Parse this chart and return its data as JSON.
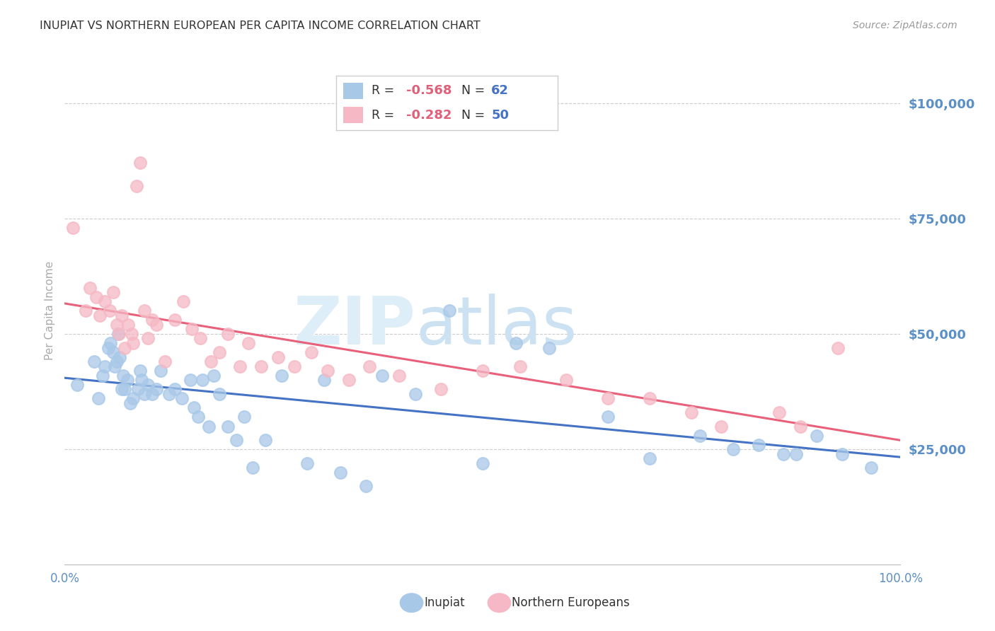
{
  "title": "INUPIAT VS NORTHERN EUROPEAN PER CAPITA INCOME CORRELATION CHART",
  "source": "Source: ZipAtlas.com",
  "ylabel": "Per Capita Income",
  "ytick_labels": [
    "$25,000",
    "$50,000",
    "$75,000",
    "$100,000"
  ],
  "ytick_values": [
    25000,
    50000,
    75000,
    100000
  ],
  "ymin": 0,
  "ymax": 110000,
  "xmin": 0.0,
  "xmax": 1.0,
  "blue_R": "-0.568",
  "blue_N": "62",
  "pink_R": "-0.282",
  "pink_N": "50",
  "blue_scatter_color": "#a8c8e8",
  "pink_scatter_color": "#f5b8c4",
  "blue_line_color": "#4472c4",
  "pink_line_color": "#e8607a",
  "title_color": "#333333",
  "source_color": "#999999",
  "axis_color": "#5b8fc7",
  "grid_color": "#cccccc",
  "background_color": "#ffffff",
  "legend_R_color": "#e0607a",
  "legend_N_color": "#4472c4",
  "inupiat_x": [
    0.015,
    0.035,
    0.04,
    0.045,
    0.048,
    0.052,
    0.055,
    0.058,
    0.06,
    0.062,
    0.064,
    0.066,
    0.068,
    0.07,
    0.072,
    0.075,
    0.078,
    0.082,
    0.088,
    0.09,
    0.092,
    0.095,
    0.1,
    0.105,
    0.11,
    0.115,
    0.125,
    0.132,
    0.14,
    0.15,
    0.155,
    0.16,
    0.165,
    0.172,
    0.178,
    0.185,
    0.195,
    0.205,
    0.215,
    0.225,
    0.24,
    0.26,
    0.29,
    0.31,
    0.33,
    0.36,
    0.38,
    0.42,
    0.46,
    0.5,
    0.54,
    0.58,
    0.65,
    0.7,
    0.76,
    0.8,
    0.83,
    0.86,
    0.875,
    0.9,
    0.93,
    0.965
  ],
  "inupiat_y": [
    39000,
    44000,
    36000,
    41000,
    43000,
    47000,
    48000,
    46000,
    43000,
    44000,
    50000,
    45000,
    38000,
    41000,
    38000,
    40000,
    35000,
    36000,
    38000,
    42000,
    40000,
    37000,
    39000,
    37000,
    38000,
    42000,
    37000,
    38000,
    36000,
    40000,
    34000,
    32000,
    40000,
    30000,
    41000,
    37000,
    30000,
    27000,
    32000,
    21000,
    27000,
    41000,
    22000,
    40000,
    20000,
    17000,
    41000,
    37000,
    55000,
    22000,
    48000,
    47000,
    32000,
    23000,
    28000,
    25000,
    26000,
    24000,
    24000,
    28000,
    24000,
    21000
  ],
  "northern_x": [
    0.01,
    0.025,
    0.03,
    0.038,
    0.042,
    0.048,
    0.054,
    0.058,
    0.062,
    0.065,
    0.068,
    0.072,
    0.076,
    0.08,
    0.082,
    0.086,
    0.09,
    0.095,
    0.1,
    0.105,
    0.11,
    0.12,
    0.132,
    0.142,
    0.152,
    0.162,
    0.175,
    0.185,
    0.195,
    0.21,
    0.22,
    0.235,
    0.255,
    0.275,
    0.295,
    0.315,
    0.34,
    0.365,
    0.4,
    0.45,
    0.5,
    0.545,
    0.6,
    0.65,
    0.7,
    0.75,
    0.785,
    0.855,
    0.88,
    0.925
  ],
  "northern_y": [
    73000,
    55000,
    60000,
    58000,
    54000,
    57000,
    55000,
    59000,
    52000,
    50000,
    54000,
    47000,
    52000,
    50000,
    48000,
    82000,
    87000,
    55000,
    49000,
    53000,
    52000,
    44000,
    53000,
    57000,
    51000,
    49000,
    44000,
    46000,
    50000,
    43000,
    48000,
    43000,
    45000,
    43000,
    46000,
    42000,
    40000,
    43000,
    41000,
    38000,
    42000,
    43000,
    40000,
    36000,
    36000,
    33000,
    30000,
    33000,
    30000,
    47000
  ]
}
